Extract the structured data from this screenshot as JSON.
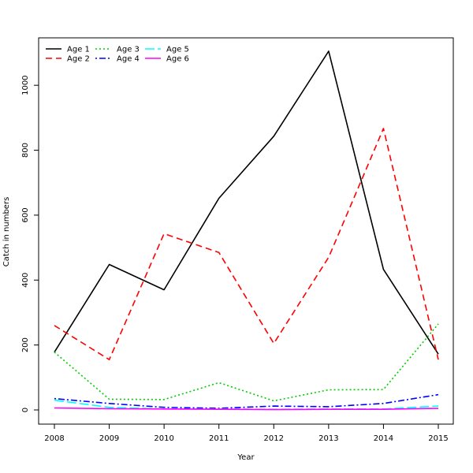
{
  "chart_data": {
    "type": "line",
    "title": "",
    "xlabel": "Year",
    "ylabel": "Catch in numbers",
    "x": [
      2008,
      2009,
      2010,
      2011,
      2012,
      2013,
      2014,
      2015
    ],
    "xlim": [
      2008,
      2015
    ],
    "ylim": [
      0,
      1100
    ],
    "yticks": [
      0,
      200,
      400,
      600,
      800,
      1000
    ],
    "grid": false,
    "legend_position": "top-left",
    "series": [
      {
        "name": "Age 1",
        "color": "#000000",
        "dash": "solid",
        "values": [
          178,
          448,
          370,
          652,
          843,
          1105,
          433,
          172
        ]
      },
      {
        "name": "Age 2",
        "color": "#ff0000",
        "dash": "dashed",
        "values": [
          260,
          155,
          543,
          485,
          205,
          470,
          867,
          155
        ]
      },
      {
        "name": "Age 3",
        "color": "#00cd00",
        "dash": "dotted",
        "values": [
          178,
          33,
          32,
          84,
          28,
          62,
          63,
          265
        ]
      },
      {
        "name": "Age 4",
        "color": "#0000ff",
        "dash": "dotdash",
        "values": [
          35,
          20,
          8,
          5,
          12,
          10,
          20,
          47
        ]
      },
      {
        "name": "Age 5",
        "color": "#00ffff",
        "dash": "longdash",
        "values": [
          30,
          8,
          3,
          3,
          2,
          3,
          3,
          12
        ]
      },
      {
        "name": "Age 6",
        "color": "#ff00ff",
        "dash": "solid",
        "values": [
          6,
          4,
          3,
          2,
          1,
          2,
          2,
          5
        ]
      }
    ]
  }
}
